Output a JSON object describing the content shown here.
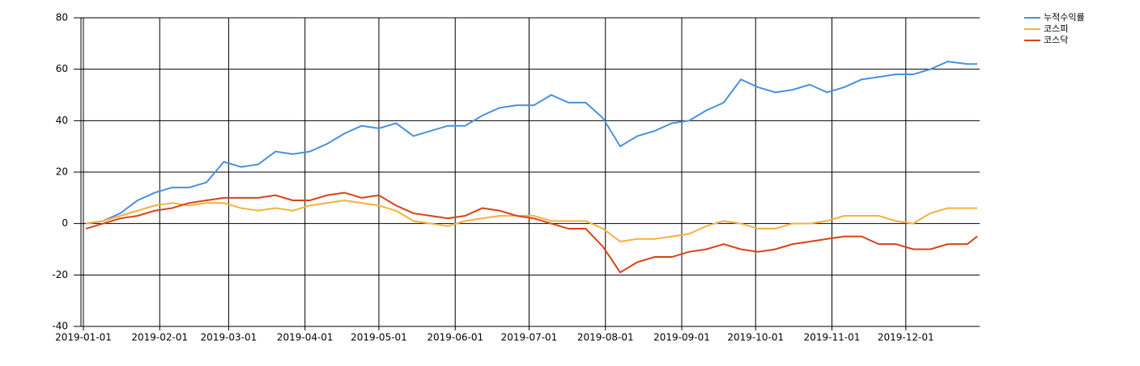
{
  "chart_data": {
    "type": "line",
    "x": [
      "2019-01-02",
      "2019-01-09",
      "2019-01-16",
      "2019-01-23",
      "2019-01-30",
      "2019-02-06",
      "2019-02-13",
      "2019-02-20",
      "2019-02-27",
      "2019-03-06",
      "2019-03-13",
      "2019-03-20",
      "2019-03-27",
      "2019-04-03",
      "2019-04-10",
      "2019-04-17",
      "2019-04-24",
      "2019-05-01",
      "2019-05-08",
      "2019-05-15",
      "2019-05-22",
      "2019-05-29",
      "2019-06-05",
      "2019-06-12",
      "2019-06-19",
      "2019-06-26",
      "2019-07-03",
      "2019-07-10",
      "2019-07-17",
      "2019-07-24",
      "2019-07-31",
      "2019-08-07",
      "2019-08-14",
      "2019-08-21",
      "2019-08-28",
      "2019-09-04",
      "2019-09-11",
      "2019-09-18",
      "2019-09-25",
      "2019-10-02",
      "2019-10-09",
      "2019-10-16",
      "2019-10-23",
      "2019-10-30",
      "2019-11-06",
      "2019-11-13",
      "2019-11-20",
      "2019-11-27",
      "2019-12-04",
      "2019-12-11",
      "2019-12-18",
      "2019-12-26",
      "2019-12-30"
    ],
    "series": [
      {
        "name": "누적수익률",
        "color": "#4a8fe0",
        "values": [
          0,
          1,
          4,
          9,
          12,
          14,
          14,
          16,
          24,
          22,
          23,
          28,
          27,
          28,
          31,
          35,
          38,
          37,
          39,
          34,
          36,
          38,
          38,
          42,
          45,
          46,
          46,
          50,
          47,
          47,
          41,
          30,
          34,
          36,
          39,
          40,
          44,
          47,
          56,
          53,
          51,
          52,
          54,
          51,
          53,
          56,
          57,
          58,
          58,
          60,
          63,
          62,
          62
        ]
      },
      {
        "name": "코스피",
        "color": "#f5b041",
        "values": [
          0,
          1,
          3,
          5,
          7,
          8,
          7,
          8,
          8,
          6,
          5,
          6,
          5,
          7,
          8,
          9,
          8,
          7,
          5,
          1,
          0,
          -1,
          1,
          2,
          3,
          3,
          3,
          1,
          1,
          1,
          -2,
          -7,
          -6,
          -6,
          -5,
          -4,
          -1,
          1,
          0,
          -2,
          -2,
          0,
          0,
          1,
          3,
          3,
          3,
          1,
          0,
          4,
          6,
          6,
          6
        ]
      },
      {
        "name": "코스닥",
        "color": "#d84315",
        "values": [
          -2,
          0,
          2,
          3,
          5,
          6,
          8,
          9,
          10,
          10,
          10,
          11,
          9,
          9,
          11,
          12,
          10,
          11,
          7,
          4,
          3,
          2,
          3,
          6,
          5,
          3,
          2,
          0,
          -2,
          -2,
          -9,
          -19,
          -15,
          -13,
          -13,
          -11,
          -10,
          -8,
          -10,
          -11,
          -10,
          -8,
          -7,
          -6,
          -5,
          -5,
          -8,
          -8,
          -10,
          -10,
          -8,
          -8,
          -5
        ]
      }
    ],
    "xlim": [
      "2019-01-01",
      "2019-12-31"
    ],
    "xticks": [
      "2019-01-01",
      "2019-02-01",
      "2019-03-01",
      "2019-04-01",
      "2019-05-01",
      "2019-06-01",
      "2019-07-01",
      "2019-08-01",
      "2019-09-01",
      "2019-10-01",
      "2019-11-01",
      "2019-12-01"
    ],
    "ylim": [
      -40,
      80
    ],
    "yticks": [
      -40,
      -20,
      0,
      20,
      40,
      60,
      80
    ],
    "grid": true,
    "legend": "top-right"
  }
}
